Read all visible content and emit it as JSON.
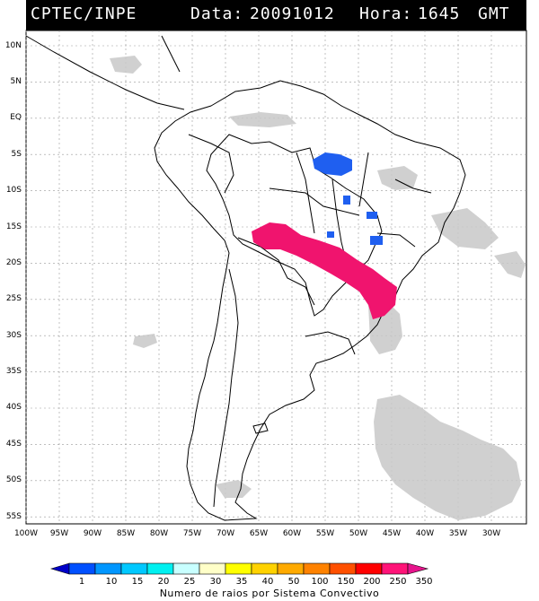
{
  "header": {
    "source": "CPTEC/INPE",
    "date_label": "Data:",
    "date_value": "20091012",
    "time_label": "Hora:",
    "time_value": "1645",
    "timezone": "GMT"
  },
  "map": {
    "lat_labels": [
      "10N",
      "5N",
      "EQ",
      "5S",
      "10S",
      "15S",
      "20S",
      "25S",
      "30S",
      "35S",
      "40S",
      "45S",
      "50S",
      "55S"
    ],
    "lon_labels": [
      "100W",
      "95W",
      "90W",
      "85W",
      "80W",
      "75W",
      "70W",
      "65W",
      "60W",
      "55W",
      "50W",
      "45W",
      "40W",
      "35W",
      "30W"
    ],
    "colors": {
      "frame": "#000000",
      "cloud_gray": "#c8c8c8",
      "lightning_blue": "#1f5ff0",
      "lightning_magenta": "#f0146e"
    }
  },
  "legend": {
    "values": [
      "1",
      "10",
      "15",
      "20",
      "25",
      "30",
      "35",
      "40",
      "50",
      "100",
      "150",
      "200",
      "250",
      "350"
    ],
    "colors": [
      "#0000c8",
      "#0050ff",
      "#0096ff",
      "#00c8ff",
      "#00f0f0",
      "#c8ffff",
      "#ffffc8",
      "#ffff00",
      "#ffd200",
      "#ffaa00",
      "#ff8200",
      "#ff5000",
      "#ff0000",
      "#ff1478",
      "#e6148c"
    ],
    "caption": "Numero de raios por Sistema Convectivo"
  }
}
